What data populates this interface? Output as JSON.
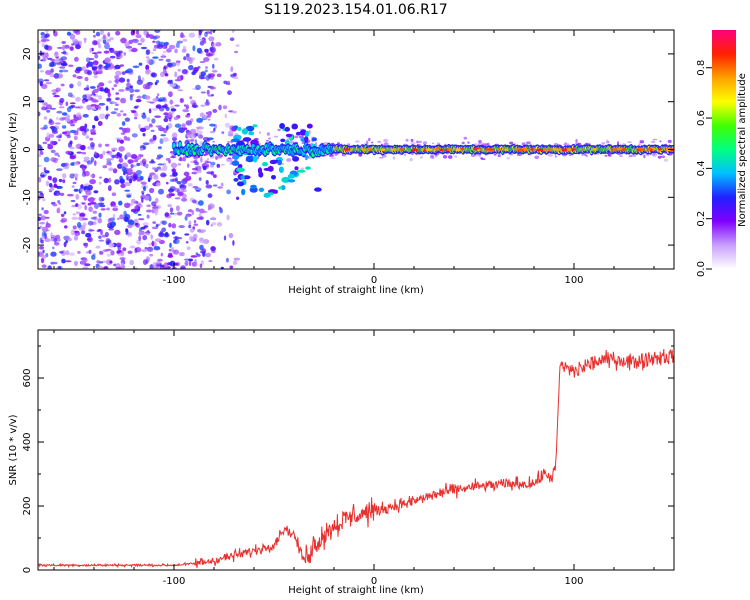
{
  "figure": {
    "title": "S119.2023.154.01.06.R17"
  },
  "chart_data": [
    {
      "type": "heatmap",
      "xlabel": "Height of straight line (km)",
      "ylabel": "Frequency (Hz)",
      "xlim": [
        -168,
        150
      ],
      "ylim": [
        -25,
        25
      ],
      "xticks": [
        -100,
        0,
        100
      ],
      "yticks": [
        -20,
        -10,
        0,
        10,
        20
      ],
      "colorbar": {
        "label": "Normalized spectral amplitude",
        "range": [
          0,
          0.95
        ],
        "ticks": [
          0.0,
          0.2,
          0.4,
          0.6,
          0.8
        ],
        "tick_labels": [
          "0.0",
          "0.2",
          "0.4",
          "0.6",
          "0.8"
        ],
        "colormap": [
          "#ffffff",
          "#c8a0ff",
          "#8000ff",
          "#2020ff",
          "#00c0ff",
          "#00ff80",
          "#40ff00",
          "#ffff00",
          "#ffa000",
          "#ff2000",
          "#ff0080"
        ]
      },
      "features": {
        "noise_region_x": [
          -168,
          -80
        ],
        "noise_amplitude": 0.3,
        "line_start_x": -100,
        "line_frequency_hz": 0,
        "line_amplitude": 0.85,
        "scatter_segment": {
          "x": [
            -70,
            -28
          ],
          "frequency_range": [
            -10,
            5
          ]
        }
      }
    },
    {
      "type": "line",
      "xlabel": "Height of straight line (km)",
      "ylabel": "SNR (10 * v/v)",
      "xlim": [
        -168,
        150
      ],
      "ylim": [
        0,
        750
      ],
      "xticks": [
        -100,
        0,
        100
      ],
      "yticks": [
        0,
        200,
        400,
        600
      ],
      "series": [
        {
          "color": "#e8312f",
          "trend": [
            {
              "x": -168,
              "y": 15
            },
            {
              "x": -100,
              "y": 15
            },
            {
              "x": -90,
              "y": 20
            },
            {
              "x": -80,
              "y": 30
            },
            {
              "x": -70,
              "y": 45
            },
            {
              "x": -60,
              "y": 60
            },
            {
              "x": -50,
              "y": 80
            },
            {
              "x": -45,
              "y": 130
            },
            {
              "x": -40,
              "y": 110
            },
            {
              "x": -35,
              "y": 30
            },
            {
              "x": -30,
              "y": 80
            },
            {
              "x": -20,
              "y": 140
            },
            {
              "x": -10,
              "y": 170
            },
            {
              "x": 0,
              "y": 185
            },
            {
              "x": 10,
              "y": 200
            },
            {
              "x": 20,
              "y": 215
            },
            {
              "x": 30,
              "y": 235
            },
            {
              "x": 40,
              "y": 250
            },
            {
              "x": 50,
              "y": 260
            },
            {
              "x": 60,
              "y": 265
            },
            {
              "x": 70,
              "y": 270
            },
            {
              "x": 80,
              "y": 270
            },
            {
              "x": 85,
              "y": 300
            },
            {
              "x": 89,
              "y": 290
            },
            {
              "x": 91,
              "y": 330
            },
            {
              "x": 93,
              "y": 640
            },
            {
              "x": 100,
              "y": 620
            },
            {
              "x": 110,
              "y": 650
            },
            {
              "x": 120,
              "y": 660
            },
            {
              "x": 130,
              "y": 650
            },
            {
              "x": 140,
              "y": 665
            },
            {
              "x": 150,
              "y": 670
            }
          ]
        }
      ]
    }
  ]
}
